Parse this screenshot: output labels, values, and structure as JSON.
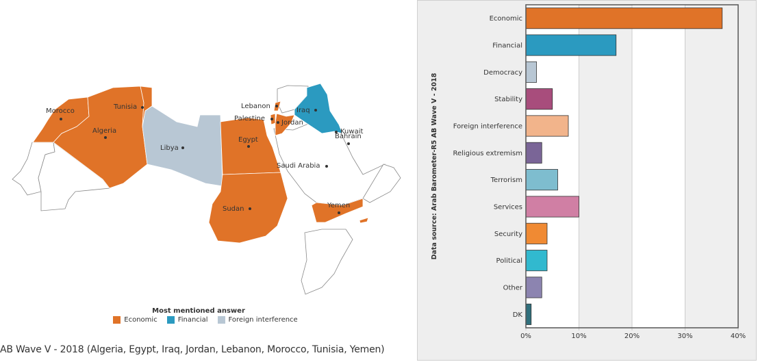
{
  "map": {
    "legend_title": "Most mentioned answer",
    "legend": [
      {
        "label": "Economic",
        "color": "#e07328"
      },
      {
        "label": "Financial",
        "color": "#2b9ac0"
      },
      {
        "label": "Foreign interference",
        "color": "#b8c7d4"
      }
    ],
    "countries": [
      {
        "name": "Morocco",
        "category": "Economic"
      },
      {
        "name": "Algeria",
        "category": "Economic"
      },
      {
        "name": "Tunisia",
        "category": "Economic"
      },
      {
        "name": "Libya",
        "category": "Foreign interference"
      },
      {
        "name": "Egypt",
        "category": "Economic"
      },
      {
        "name": "Sudan",
        "category": "Economic"
      },
      {
        "name": "Lebanon",
        "category": "Economic"
      },
      {
        "name": "Palestine",
        "category": "Economic"
      },
      {
        "name": "Jordan",
        "category": "Economic"
      },
      {
        "name": "Iraq",
        "category": "Financial"
      },
      {
        "name": "Kuwait",
        "category": ""
      },
      {
        "name": "Bahrain",
        "category": ""
      },
      {
        "name": "Saudi Arabia",
        "category": ""
      },
      {
        "name": "Yemen",
        "category": "Economic"
      }
    ]
  },
  "caption": "AB Wave V - 2018 (Algeria, Egypt, Iraq, Jordan, Lebanon, Morocco, Tunisia, Yemen)",
  "source_label": "Data source: Arab Barometer-R5 AB Wave V - 2018",
  "chart_data": {
    "type": "bar",
    "orientation": "horizontal",
    "categories": [
      "Economic",
      "Financial",
      "Democracy",
      "Stability",
      "Foreign interference",
      "Religious extremism",
      "Terrorism",
      "Services",
      "Security",
      "Political",
      "Other",
      "DK"
    ],
    "values": [
      37,
      17,
      2,
      5,
      8,
      3,
      6,
      10,
      4,
      4,
      3,
      1
    ],
    "colors": [
      "#e07328",
      "#2b9ac0",
      "#b8c7d4",
      "#a84d7c",
      "#f2b48b",
      "#7a6597",
      "#7ebdcf",
      "#d07fa4",
      "#f08a33",
      "#31b9cf",
      "#8c84b0",
      "#2f6f7c"
    ],
    "xlim": [
      0,
      40
    ],
    "xticks": [
      "0%",
      "10%",
      "20%",
      "30%",
      "40%"
    ],
    "grid": true
  }
}
